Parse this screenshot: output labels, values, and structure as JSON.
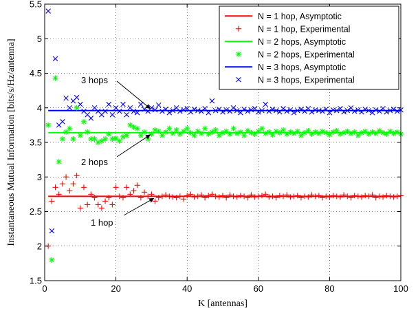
{
  "chart_data": {
    "type": "line",
    "xlabel": "K [antennas]",
    "ylabel": "Instantaneous Mutual Information  [bits/s/Hz/antenna]",
    "xlim": [
      0,
      100
    ],
    "ylim": [
      1.5,
      5.5
    ],
    "xticks": [
      "0",
      "20",
      "40",
      "60",
      "80",
      "100"
    ],
    "yticks": [
      "1.5",
      "2",
      "2.5",
      "3",
      "3.5",
      "4",
      "4.5",
      "5",
      "5.5"
    ],
    "grid": true,
    "legend_position": "top-right",
    "colors": {
      "n1": "#ff0000",
      "n2": "#00ff00",
      "n3": "#0000ff"
    },
    "series": [
      {
        "name": "N = 1 hop, Asymptotic",
        "kind": "line",
        "color": "#ff0000",
        "x": [
          1,
          100
        ],
        "y": [
          2.72,
          2.72
        ]
      },
      {
        "name": "N = 1 hop, Experimental",
        "kind": "marker",
        "marker": "plus",
        "color": "#ff0000",
        "x": [
          1,
          2,
          3,
          4,
          5,
          6,
          7,
          8,
          9,
          10,
          11,
          12,
          13,
          14,
          15,
          16,
          17,
          18,
          19,
          20,
          21,
          22,
          23,
          24,
          25,
          26,
          27,
          28,
          29,
          30,
          31,
          32,
          33,
          34,
          35,
          36,
          37,
          38,
          39,
          40,
          41,
          42,
          43,
          44,
          45,
          46,
          47,
          48,
          49,
          50,
          51,
          52,
          53,
          54,
          55,
          56,
          57,
          58,
          59,
          60,
          61,
          62,
          63,
          64,
          65,
          66,
          67,
          68,
          69,
          70,
          71,
          72,
          73,
          74,
          75,
          76,
          77,
          78,
          79,
          80,
          81,
          82,
          83,
          84,
          85,
          86,
          87,
          88,
          89,
          90,
          91,
          92,
          93,
          94,
          95,
          96,
          97,
          98,
          99,
          100
        ],
        "y": [
          2.0,
          2.65,
          2.85,
          2.75,
          2.9,
          3.0,
          2.8,
          2.9,
          3.02,
          2.55,
          2.85,
          2.6,
          2.75,
          2.7,
          2.6,
          2.55,
          2.65,
          2.7,
          2.6,
          2.85,
          2.72,
          2.7,
          2.85,
          2.75,
          2.8,
          2.88,
          2.7,
          2.78,
          2.72,
          2.75,
          2.65,
          2.7,
          2.72,
          2.74,
          2.72,
          2.71,
          2.7,
          2.72,
          2.68,
          2.73,
          2.75,
          2.71,
          2.72,
          2.74,
          2.7,
          2.73,
          2.75,
          2.72,
          2.71,
          2.73,
          2.7,
          2.74,
          2.72,
          2.71,
          2.73,
          2.72,
          2.7,
          2.74,
          2.71,
          2.72,
          2.73,
          2.75,
          2.71,
          2.72,
          2.7,
          2.73,
          2.72,
          2.74,
          2.71,
          2.72,
          2.73,
          2.7,
          2.72,
          2.71,
          2.74,
          2.72,
          2.73,
          2.7,
          2.72,
          2.71,
          2.73,
          2.72,
          2.71,
          2.74,
          2.72,
          2.7,
          2.73,
          2.72,
          2.71,
          2.73,
          2.72,
          2.74,
          2.7,
          2.72,
          2.71,
          2.73,
          2.72,
          2.71,
          2.72,
          2.73
        ]
      },
      {
        "name": "N = 2 hops, Asymptotic",
        "kind": "line",
        "color": "#00ff00",
        "x": [
          1,
          100
        ],
        "y": [
          3.64,
          3.64
        ]
      },
      {
        "name": "N = 2 hops, Experimental",
        "kind": "marker",
        "marker": "asterisk",
        "color": "#00ff00",
        "x": [
          1,
          2,
          3,
          4,
          5,
          6,
          7,
          8,
          9,
          10,
          11,
          12,
          13,
          14,
          15,
          16,
          17,
          18,
          19,
          20,
          21,
          22,
          23,
          24,
          25,
          26,
          27,
          28,
          29,
          30,
          31,
          32,
          33,
          34,
          35,
          36,
          37,
          38,
          39,
          40,
          41,
          42,
          43,
          44,
          45,
          46,
          47,
          48,
          49,
          50,
          51,
          52,
          53,
          54,
          55,
          56,
          57,
          58,
          59,
          60,
          61,
          62,
          63,
          64,
          65,
          66,
          67,
          68,
          69,
          70,
          71,
          72,
          73,
          74,
          75,
          76,
          77,
          78,
          79,
          80,
          81,
          82,
          83,
          84,
          85,
          86,
          87,
          88,
          89,
          90,
          91,
          92,
          93,
          94,
          95,
          96,
          97,
          98,
          99,
          100
        ],
        "y": [
          3.75,
          1.8,
          4.43,
          3.22,
          3.55,
          3.65,
          3.7,
          3.55,
          4.0,
          3.6,
          3.8,
          3.65,
          3.55,
          3.55,
          3.5,
          3.52,
          3.55,
          3.62,
          3.55,
          3.56,
          3.52,
          3.58,
          3.6,
          3.75,
          3.72,
          3.7,
          3.6,
          3.65,
          3.55,
          3.62,
          3.68,
          3.66,
          3.6,
          3.65,
          3.7,
          3.63,
          3.68,
          3.62,
          3.66,
          3.7,
          3.64,
          3.6,
          3.66,
          3.63,
          3.7,
          3.62,
          3.65,
          3.68,
          3.6,
          3.64,
          3.66,
          3.62,
          3.7,
          3.63,
          3.65,
          3.6,
          3.67,
          3.64,
          3.62,
          3.66,
          3.7,
          3.63,
          3.65,
          3.61,
          3.66,
          3.64,
          3.68,
          3.62,
          3.65,
          3.63,
          3.66,
          3.6,
          3.64,
          3.67,
          3.62,
          3.65,
          3.63,
          3.66,
          3.64,
          3.61,
          3.65,
          3.67,
          3.62,
          3.64,
          3.66,
          3.63,
          3.65,
          3.6,
          3.64,
          3.66,
          3.62,
          3.65,
          3.63,
          3.67,
          3.64,
          3.62,
          3.66,
          3.63,
          3.65,
          3.62
        ]
      },
      {
        "name": "N = 3 hops, Asymptotic",
        "kind": "line",
        "color": "#0000ff",
        "x": [
          1,
          100
        ],
        "y": [
          3.96,
          3.96
        ]
      },
      {
        "name": "N = 3 hops, Experimental",
        "kind": "marker",
        "marker": "cross",
        "color": "#0000ff",
        "x": [
          1,
          2,
          3,
          4,
          5,
          6,
          7,
          8,
          9,
          10,
          11,
          12,
          13,
          14,
          15,
          16,
          17,
          18,
          19,
          20,
          21,
          22,
          23,
          24,
          25,
          26,
          27,
          28,
          29,
          30,
          31,
          32,
          33,
          34,
          35,
          36,
          37,
          38,
          39,
          40,
          41,
          42,
          43,
          44,
          45,
          46,
          47,
          48,
          49,
          50,
          51,
          52,
          53,
          54,
          55,
          56,
          57,
          58,
          59,
          60,
          61,
          62,
          63,
          64,
          65,
          66,
          67,
          68,
          69,
          70,
          71,
          72,
          73,
          74,
          75,
          76,
          77,
          78,
          79,
          80,
          81,
          82,
          83,
          84,
          85,
          86,
          87,
          88,
          89,
          90,
          91,
          92,
          93,
          94,
          95,
          96,
          97,
          98,
          99,
          100
        ],
        "y": [
          5.4,
          2.22,
          4.71,
          3.75,
          3.8,
          4.14,
          4.0,
          4.1,
          4.15,
          4.05,
          3.95,
          3.9,
          3.85,
          4.0,
          3.95,
          3.9,
          3.95,
          4.05,
          3.9,
          4.0,
          3.95,
          4.05,
          3.9,
          4.0,
          3.95,
          3.93,
          4.05,
          3.98,
          3.95,
          4.0,
          3.97,
          4.04,
          3.95,
          3.98,
          3.93,
          3.96,
          4.0,
          3.95,
          3.97,
          3.99,
          3.94,
          3.98,
          3.96,
          3.95,
          3.99,
          3.93,
          4.1,
          3.96,
          3.98,
          3.94,
          3.97,
          3.95,
          4.0,
          3.96,
          3.93,
          3.98,
          3.95,
          3.97,
          3.99,
          3.94,
          3.96,
          4.05,
          3.95,
          3.98,
          3.96,
          3.94,
          3.99,
          3.95,
          3.97,
          3.93,
          3.96,
          3.98,
          3.95,
          3.99,
          3.94,
          3.97,
          3.96,
          3.95,
          3.98,
          3.93,
          3.97,
          3.96,
          3.99,
          3.94,
          3.96,
          4.0,
          3.95,
          3.97,
          3.94,
          3.98,
          3.96,
          3.93,
          3.97,
          3.95,
          3.99,
          3.94,
          3.96,
          3.98,
          3.95,
          3.97
        ]
      }
    ],
    "annotations": [
      {
        "text": "3 hops",
        "at": [
          30,
          3.96
        ]
      },
      {
        "text": "2 hops",
        "at": [
          30,
          3.64
        ]
      },
      {
        "text": "1 hop",
        "at": [
          31,
          2.72
        ]
      }
    ]
  }
}
